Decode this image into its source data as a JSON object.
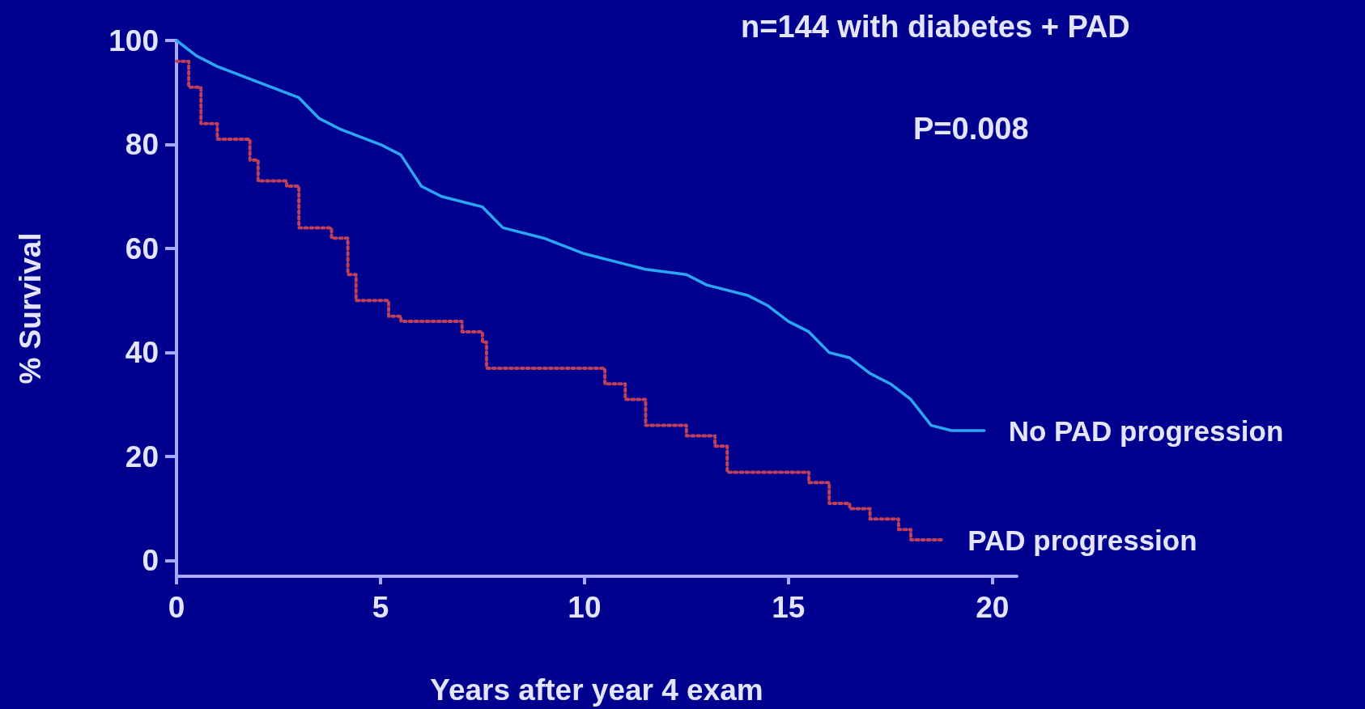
{
  "chart_data": {
    "type": "line",
    "xlabel": "Years after year 4 exam",
    "ylabel": "% Survival",
    "annotations": [
      "n=144 with diabetes + PAD",
      "P=0.008"
    ],
    "xlim": [
      0,
      20.6
    ],
    "xticks": [
      0,
      5,
      10,
      15,
      20
    ],
    "ylim": [
      -3,
      100
    ],
    "yticks": [
      0,
      20,
      40,
      60,
      80,
      100
    ],
    "grid": false,
    "legend": false,
    "marker": "none",
    "series": [
      {
        "name": "No PAD progression",
        "color": "#2aa6f7",
        "line_style": "solid",
        "x": [
          0,
          0.5,
          1,
          2,
          3,
          3.5,
          4,
          5,
          5.5,
          6,
          6.5,
          7.5,
          8,
          9,
          10,
          11,
          11.5,
          12.5,
          13,
          14,
          14.5,
          15,
          15.5,
          16,
          16.5,
          17,
          17.5,
          18,
          18.5,
          19,
          19.8
        ],
        "values": [
          100,
          97,
          95,
          92,
          89,
          85,
          83,
          80,
          78,
          72,
          70,
          68,
          64,
          62,
          59,
          57,
          56,
          55,
          53,
          51,
          49,
          46,
          44,
          40,
          39,
          36,
          34,
          31,
          26,
          25,
          25
        ]
      },
      {
        "name": "PAD progression",
        "type": "step",
        "color": "#c0405a",
        "line_style": "dotted",
        "x": [
          0,
          0.3,
          0.6,
          1,
          1.8,
          2,
          2.7,
          3,
          3.8,
          4.2,
          4.4,
          5.2,
          5.5,
          7,
          7.5,
          7.6,
          10.2,
          10.5,
          11,
          11.5,
          12.5,
          13.2,
          13.5,
          15,
          15.5,
          16,
          16.5,
          17,
          17.7,
          18,
          18.8
        ],
        "values": [
          96,
          91,
          84,
          81,
          77,
          73,
          72,
          64,
          62,
          55,
          50,
          47,
          46,
          44,
          42,
          37,
          37,
          34,
          31,
          26,
          24,
          22,
          17,
          17,
          15,
          11,
          10,
          8,
          6,
          4,
          4
        ]
      }
    ]
  }
}
